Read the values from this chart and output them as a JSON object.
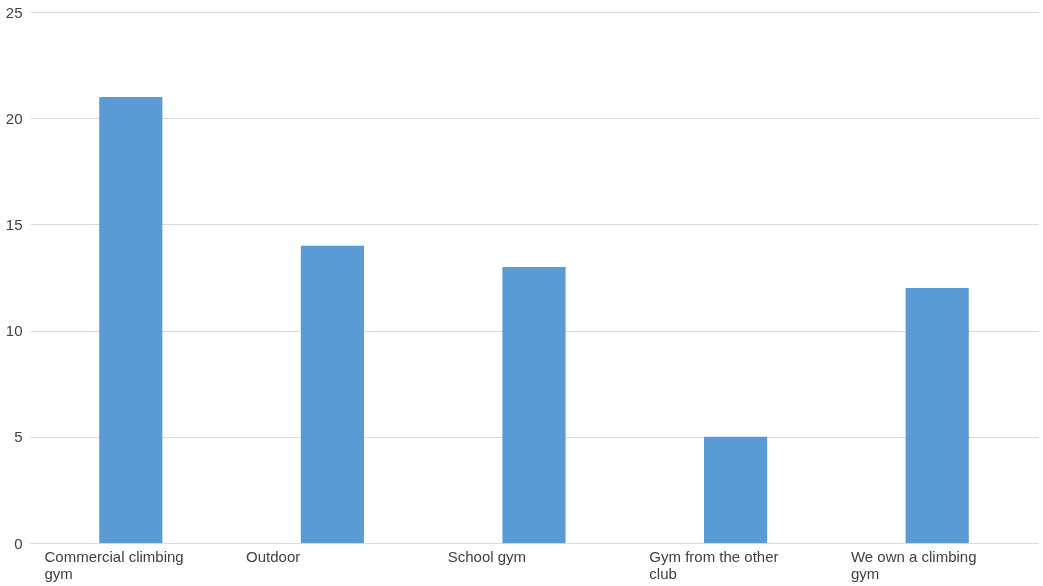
{
  "chart_data": {
    "type": "bar",
    "categories": [
      "Commercial climbing gym",
      "Outdoor",
      "School gym",
      "Gym from the other club",
      "We own a climbing gym"
    ],
    "values": [
      21,
      14,
      13,
      5,
      12
    ],
    "color": "#5b9bd5",
    "ylim": [
      0,
      25
    ],
    "yticks": [
      0,
      5,
      10,
      15,
      20,
      25
    ],
    "grid": "y"
  }
}
